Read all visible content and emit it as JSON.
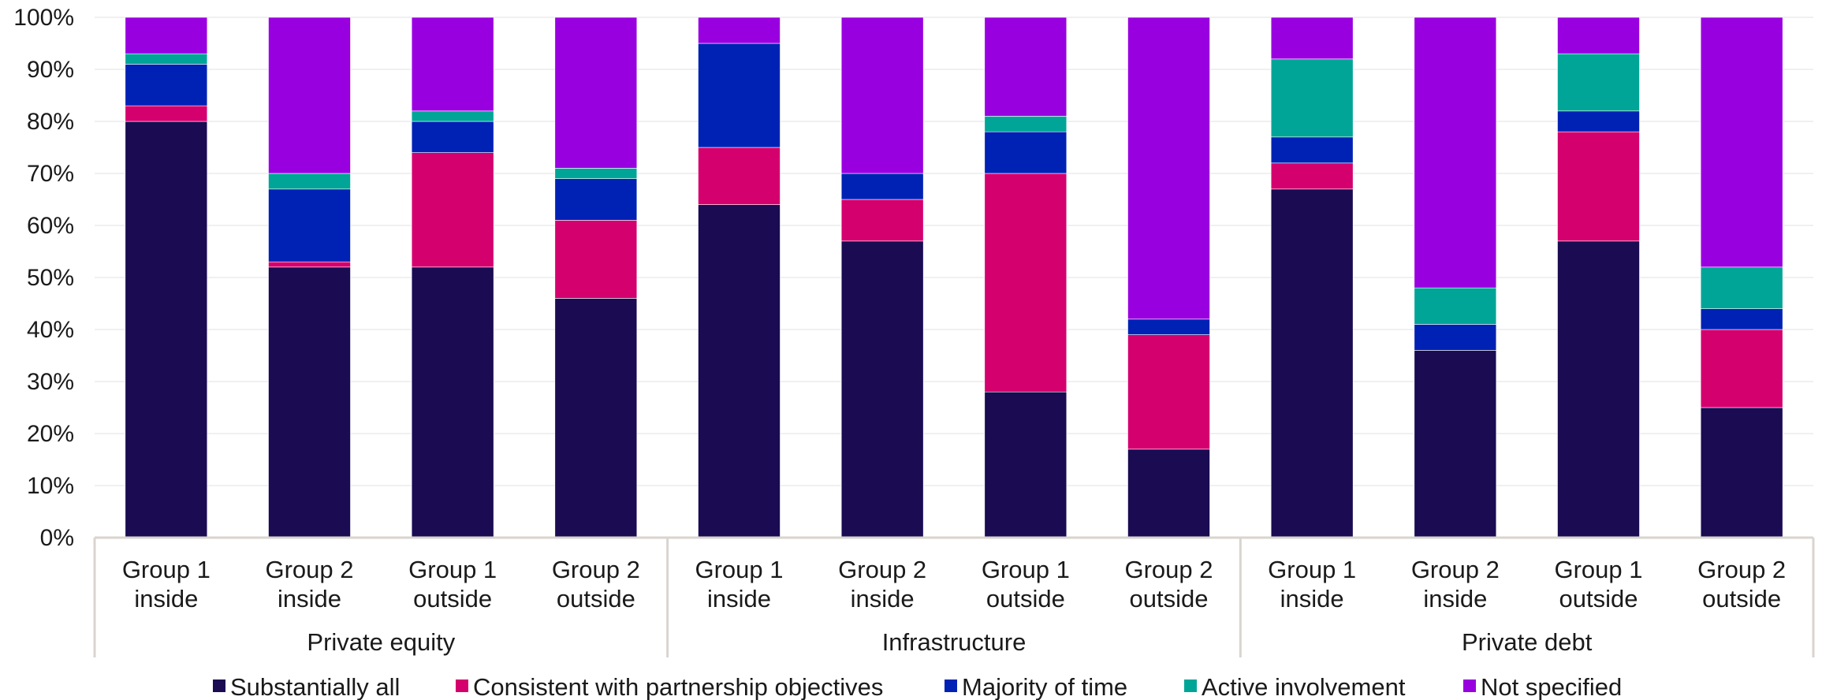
{
  "chart_data": {
    "type": "bar",
    "stacked": true,
    "orientation": "vertical",
    "categories": [
      [
        "Group 1",
        "inside"
      ],
      [
        "Group 2",
        "inside"
      ],
      [
        "Group 1",
        "outside"
      ],
      [
        "Group 2",
        "outside"
      ],
      [
        "Group 1",
        "inside"
      ],
      [
        "Group 2",
        "inside"
      ],
      [
        "Group 1",
        "outside"
      ],
      [
        "Group 2",
        "outside"
      ],
      [
        "Group 1",
        "inside"
      ],
      [
        "Group 2",
        "inside"
      ],
      [
        "Group 1",
        "outside"
      ],
      [
        "Group 2",
        "outside"
      ]
    ],
    "groups": [
      {
        "label": "Private equity",
        "count": 4
      },
      {
        "label": "Infrastructure",
        "count": 4
      },
      {
        "label": "Private debt",
        "count": 4
      }
    ],
    "series": [
      {
        "name": "Substantially all",
        "color": "#1a0b52",
        "values": [
          80,
          52,
          52,
          46,
          64,
          57,
          28,
          17,
          67,
          36,
          57,
          25
        ]
      },
      {
        "name": "Consistent with partnership objectives",
        "color": "#d4006e",
        "values": [
          3,
          1,
          22,
          15,
          11,
          8,
          42,
          22,
          5,
          0,
          21,
          15
        ]
      },
      {
        "name": "Majority of time",
        "color": "#0022b4",
        "values": [
          8,
          14,
          6,
          8,
          20,
          5,
          8,
          3,
          5,
          5,
          4,
          4
        ]
      },
      {
        "name": "Active involvement",
        "color": "#00a597",
        "values": [
          2,
          3,
          2,
          2,
          0,
          0,
          3,
          0,
          15,
          7,
          11,
          8
        ]
      },
      {
        "name": "Not specified",
        "color": "#9900e0",
        "values": [
          7,
          30,
          18,
          29,
          5,
          30,
          19,
          58,
          8,
          52,
          7,
          48
        ]
      }
    ],
    "y_ticks": [
      "0%",
      "10%",
      "20%",
      "30%",
      "40%",
      "50%",
      "60%",
      "70%",
      "80%",
      "90%",
      "100%"
    ],
    "ylim": [
      0,
      100
    ],
    "grid": true,
    "legend_position": "bottom"
  }
}
